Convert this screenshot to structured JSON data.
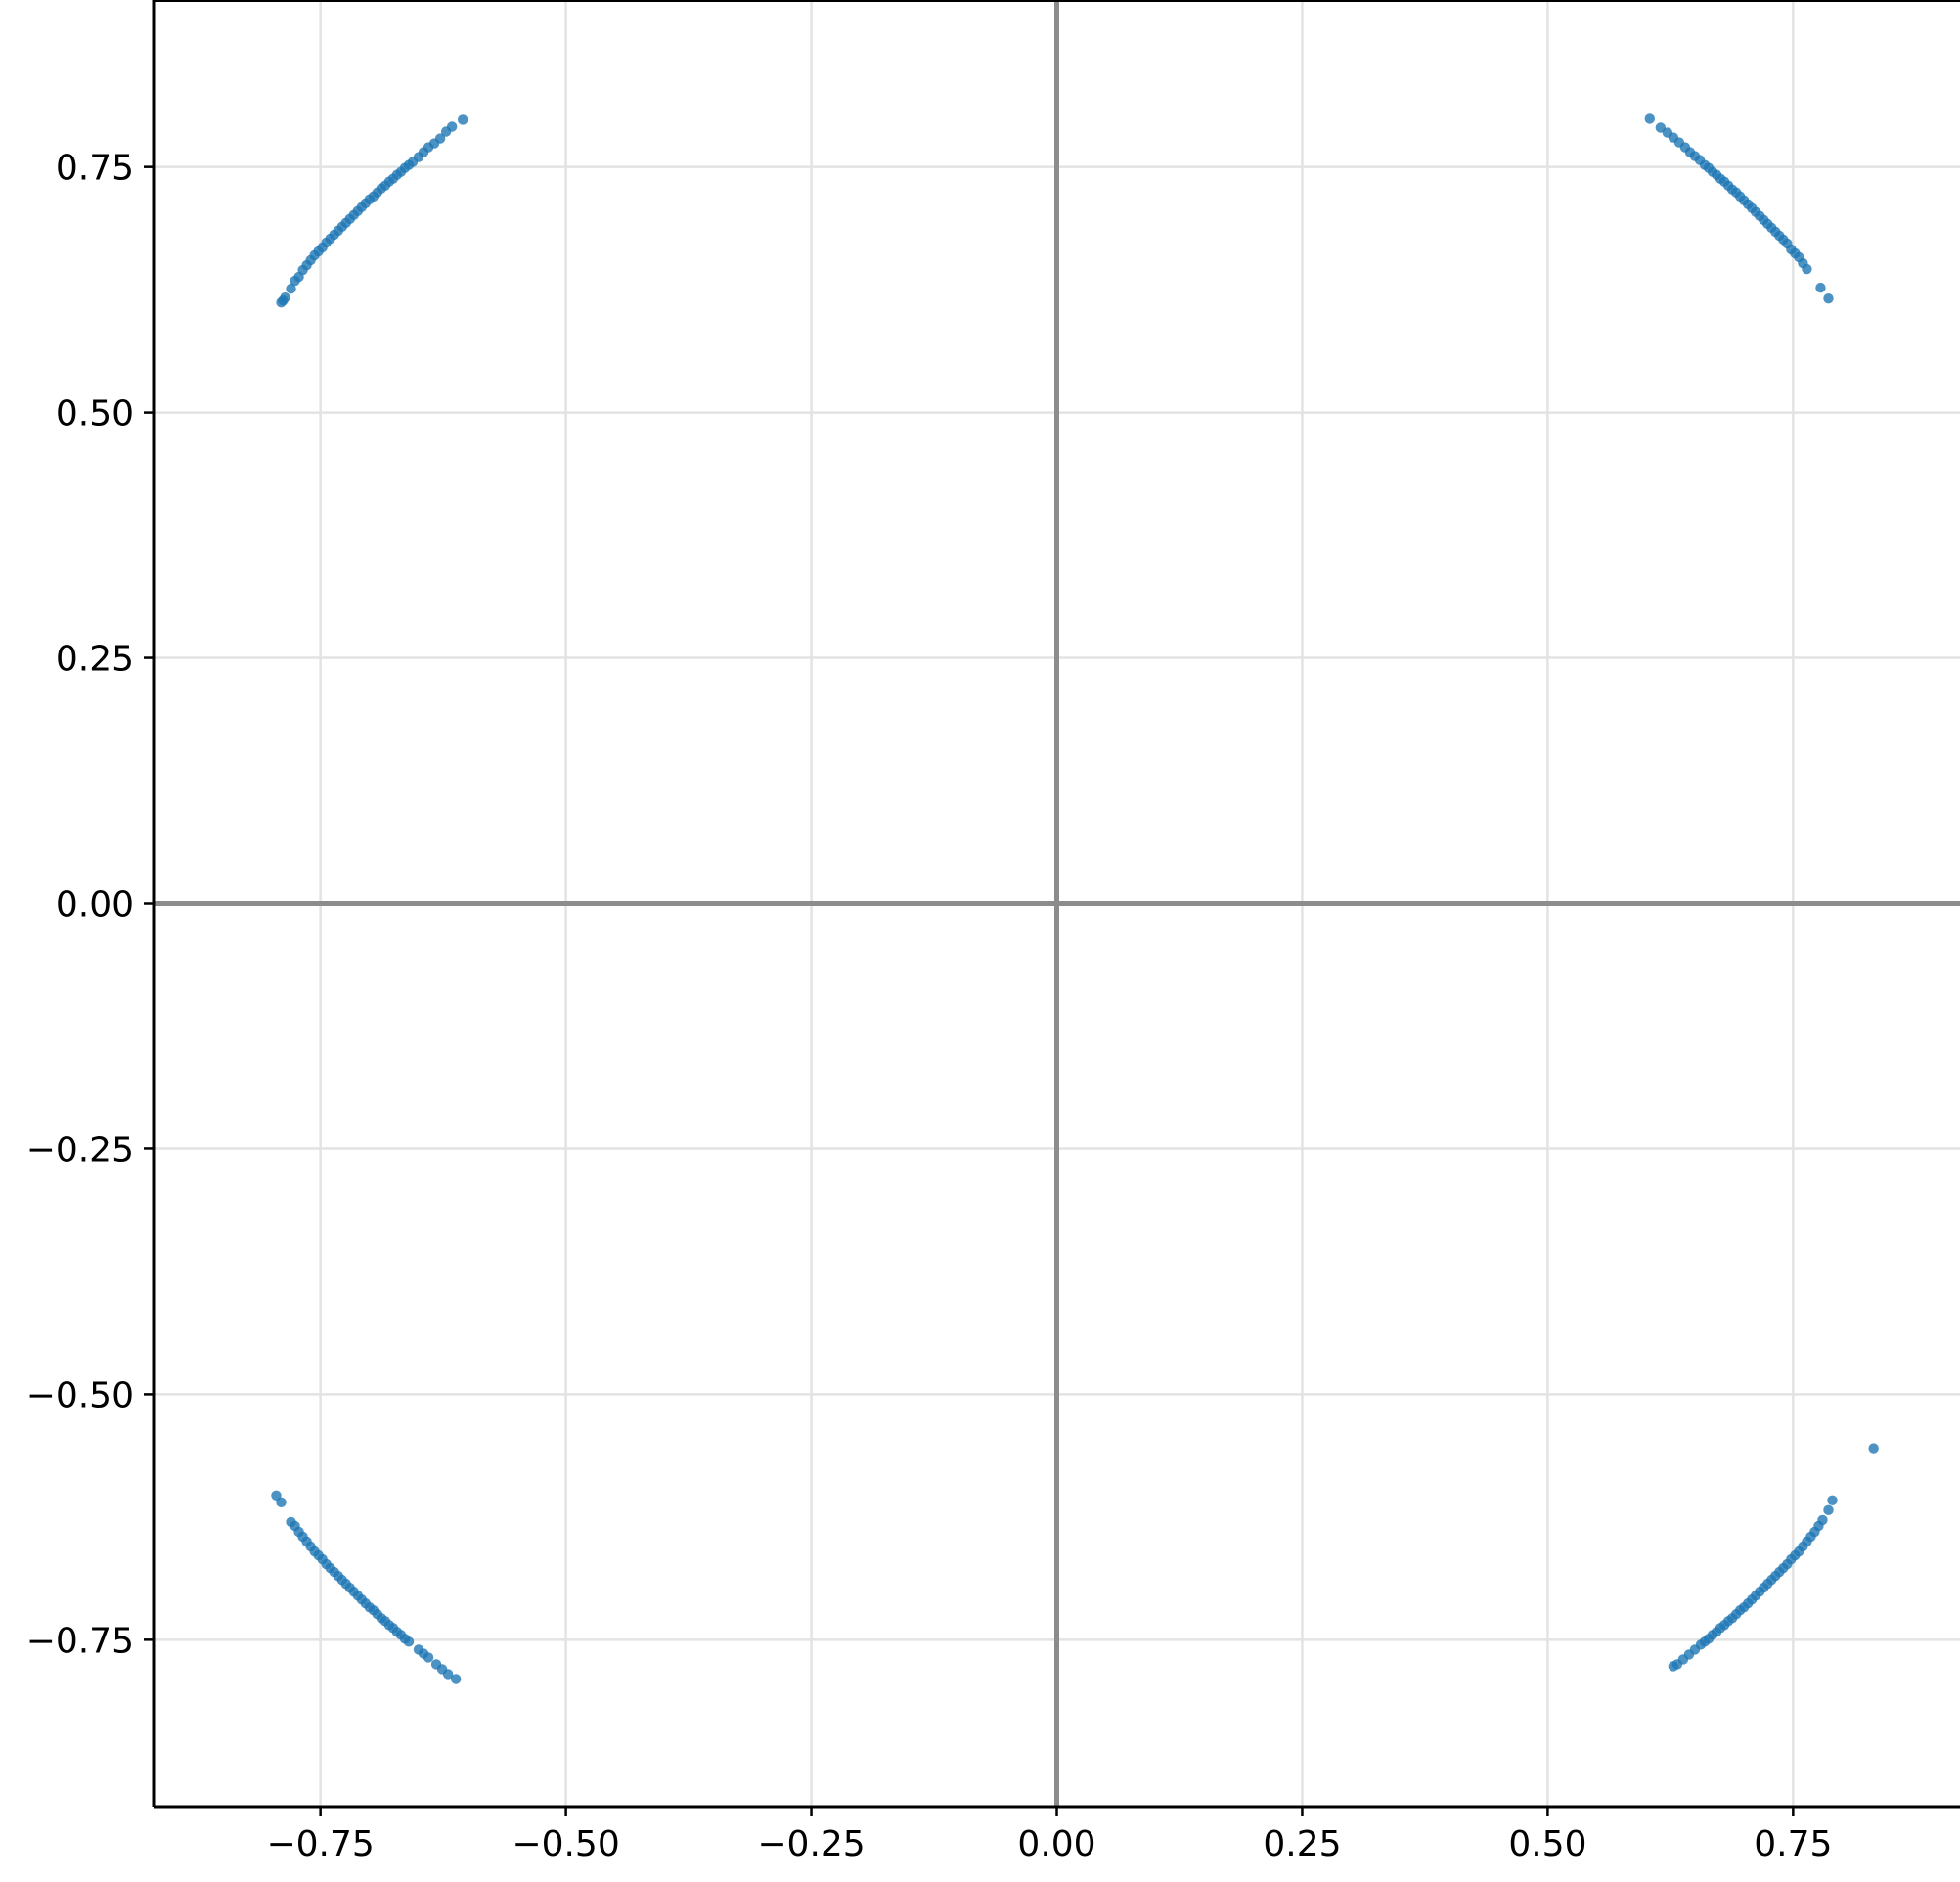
{
  "chart_data": {
    "type": "scatter",
    "title": "",
    "xlabel": "",
    "ylabel": "",
    "xlim": [
      -0.92,
      0.92
    ],
    "ylim": [
      -0.92,
      0.92
    ],
    "grid": true,
    "zero_lines": true,
    "marker_color": "#1f77b4",
    "x_ticks": [
      -0.75,
      -0.5,
      -0.25,
      0.0,
      0.25,
      0.5,
      0.75
    ],
    "x_tick_labels": [
      "−0.75",
      "−0.50",
      "−0.25",
      "0.00",
      "0.25",
      "0.50",
      "0.75"
    ],
    "y_ticks": [
      0.75,
      0.5,
      0.25,
      0.0,
      -0.25,
      -0.5,
      -0.75
    ],
    "y_tick_labels": [
      "0.75",
      "0.50",
      "0.25",
      "0.00",
      "−0.25",
      "−0.50",
      "−0.75"
    ],
    "series": [
      {
        "points": [
          [
            -0.79,
            0.612
          ],
          [
            -0.788,
            0.614
          ],
          [
            -0.786,
            0.617
          ],
          [
            -0.78,
            0.626
          ],
          [
            -0.776,
            0.634
          ],
          [
            -0.772,
            0.638
          ],
          [
            -0.768,
            0.645
          ],
          [
            -0.764,
            0.65
          ],
          [
            -0.76,
            0.655
          ],
          [
            -0.756,
            0.66
          ],
          [
            -0.752,
            0.664
          ],
          [
            -0.748,
            0.668
          ],
          [
            -0.744,
            0.673
          ],
          [
            -0.74,
            0.677
          ],
          [
            -0.736,
            0.681
          ],
          [
            -0.732,
            0.685
          ],
          [
            -0.728,
            0.689
          ],
          [
            -0.724,
            0.693
          ],
          [
            -0.72,
            0.697
          ],
          [
            -0.716,
            0.701
          ],
          [
            -0.712,
            0.705
          ],
          [
            -0.708,
            0.709
          ],
          [
            -0.704,
            0.713
          ],
          [
            -0.7,
            0.717
          ],
          [
            -0.696,
            0.72
          ],
          [
            -0.692,
            0.724
          ],
          [
            -0.688,
            0.728
          ],
          [
            -0.684,
            0.731
          ],
          [
            -0.68,
            0.735
          ],
          [
            -0.676,
            0.738
          ],
          [
            -0.672,
            0.742
          ],
          [
            -0.668,
            0.745
          ],
          [
            -0.664,
            0.749
          ],
          [
            -0.66,
            0.752
          ],
          [
            -0.656,
            0.755
          ],
          [
            -0.65,
            0.76
          ],
          [
            -0.645,
            0.765
          ],
          [
            -0.64,
            0.77
          ],
          [
            -0.634,
            0.774
          ],
          [
            -0.628,
            0.779
          ],
          [
            -0.622,
            0.786
          ],
          [
            -0.616,
            0.791
          ],
          [
            -0.605,
            0.798
          ]
        ]
      },
      {
        "points": [
          [
            0.604,
            0.799
          ],
          [
            0.615,
            0.79
          ],
          [
            0.622,
            0.785
          ],
          [
            0.628,
            0.78
          ],
          [
            0.634,
            0.775
          ],
          [
            0.64,
            0.77
          ],
          [
            0.645,
            0.765
          ],
          [
            0.65,
            0.761
          ],
          [
            0.655,
            0.757
          ],
          [
            0.66,
            0.752
          ],
          [
            0.664,
            0.749
          ],
          [
            0.668,
            0.745
          ],
          [
            0.672,
            0.742
          ],
          [
            0.676,
            0.738
          ],
          [
            0.68,
            0.735
          ],
          [
            0.684,
            0.731
          ],
          [
            0.688,
            0.727
          ],
          [
            0.692,
            0.724
          ],
          [
            0.696,
            0.72
          ],
          [
            0.7,
            0.716
          ],
          [
            0.704,
            0.712
          ],
          [
            0.708,
            0.708
          ],
          [
            0.712,
            0.704
          ],
          [
            0.716,
            0.7
          ],
          [
            0.72,
            0.696
          ],
          [
            0.724,
            0.692
          ],
          [
            0.728,
            0.688
          ],
          [
            0.732,
            0.684
          ],
          [
            0.736,
            0.68
          ],
          [
            0.74,
            0.676
          ],
          [
            0.744,
            0.672
          ],
          [
            0.748,
            0.666
          ],
          [
            0.752,
            0.662
          ],
          [
            0.756,
            0.658
          ],
          [
            0.76,
            0.652
          ],
          [
            0.764,
            0.646
          ],
          [
            0.778,
            0.627
          ],
          [
            0.786,
            0.616
          ]
        ]
      },
      {
        "points": [
          [
            -0.795,
            -0.603
          ],
          [
            -0.79,
            -0.61
          ],
          [
            -0.78,
            -0.63
          ],
          [
            -0.776,
            -0.634
          ],
          [
            -0.772,
            -0.64
          ],
          [
            -0.768,
            -0.645
          ],
          [
            -0.764,
            -0.65
          ],
          [
            -0.76,
            -0.655
          ],
          [
            -0.756,
            -0.66
          ],
          [
            -0.752,
            -0.664
          ],
          [
            -0.748,
            -0.668
          ],
          [
            -0.744,
            -0.673
          ],
          [
            -0.74,
            -0.677
          ],
          [
            -0.736,
            -0.681
          ],
          [
            -0.732,
            -0.685
          ],
          [
            -0.728,
            -0.689
          ],
          [
            -0.724,
            -0.693
          ],
          [
            -0.72,
            -0.697
          ],
          [
            -0.716,
            -0.701
          ],
          [
            -0.712,
            -0.705
          ],
          [
            -0.708,
            -0.709
          ],
          [
            -0.704,
            -0.713
          ],
          [
            -0.7,
            -0.717
          ],
          [
            -0.696,
            -0.72
          ],
          [
            -0.692,
            -0.724
          ],
          [
            -0.688,
            -0.728
          ],
          [
            -0.684,
            -0.731
          ],
          [
            -0.68,
            -0.735
          ],
          [
            -0.676,
            -0.738
          ],
          [
            -0.672,
            -0.742
          ],
          [
            -0.668,
            -0.745
          ],
          [
            -0.664,
            -0.749
          ],
          [
            -0.66,
            -0.752
          ],
          [
            -0.65,
            -0.76
          ],
          [
            -0.645,
            -0.764
          ],
          [
            -0.64,
            -0.768
          ],
          [
            -0.632,
            -0.775
          ],
          [
            -0.626,
            -0.78
          ],
          [
            -0.62,
            -0.785
          ],
          [
            -0.612,
            -0.79
          ]
        ]
      },
      {
        "points": [
          [
            0.628,
            -0.777
          ],
          [
            0.632,
            -0.775
          ],
          [
            0.638,
            -0.77
          ],
          [
            0.644,
            -0.765
          ],
          [
            0.65,
            -0.76
          ],
          [
            0.656,
            -0.755
          ],
          [
            0.66,
            -0.752
          ],
          [
            0.664,
            -0.749
          ],
          [
            0.668,
            -0.745
          ],
          [
            0.672,
            -0.742
          ],
          [
            0.676,
            -0.738
          ],
          [
            0.68,
            -0.735
          ],
          [
            0.684,
            -0.731
          ],
          [
            0.688,
            -0.728
          ],
          [
            0.692,
            -0.724
          ],
          [
            0.696,
            -0.72
          ],
          [
            0.7,
            -0.717
          ],
          [
            0.704,
            -0.713
          ],
          [
            0.708,
            -0.709
          ],
          [
            0.712,
            -0.705
          ],
          [
            0.716,
            -0.701
          ],
          [
            0.72,
            -0.697
          ],
          [
            0.724,
            -0.693
          ],
          [
            0.728,
            -0.689
          ],
          [
            0.732,
            -0.685
          ],
          [
            0.736,
            -0.681
          ],
          [
            0.74,
            -0.677
          ],
          [
            0.744,
            -0.673
          ],
          [
            0.748,
            -0.668
          ],
          [
            0.752,
            -0.664
          ],
          [
            0.756,
            -0.66
          ],
          [
            0.76,
            -0.655
          ],
          [
            0.764,
            -0.65
          ],
          [
            0.768,
            -0.645
          ],
          [
            0.772,
            -0.64
          ],
          [
            0.776,
            -0.634
          ],
          [
            0.78,
            -0.628
          ],
          [
            0.786,
            -0.618
          ],
          [
            0.79,
            -0.608
          ],
          [
            0.832,
            -0.555
          ]
        ]
      }
    ]
  }
}
